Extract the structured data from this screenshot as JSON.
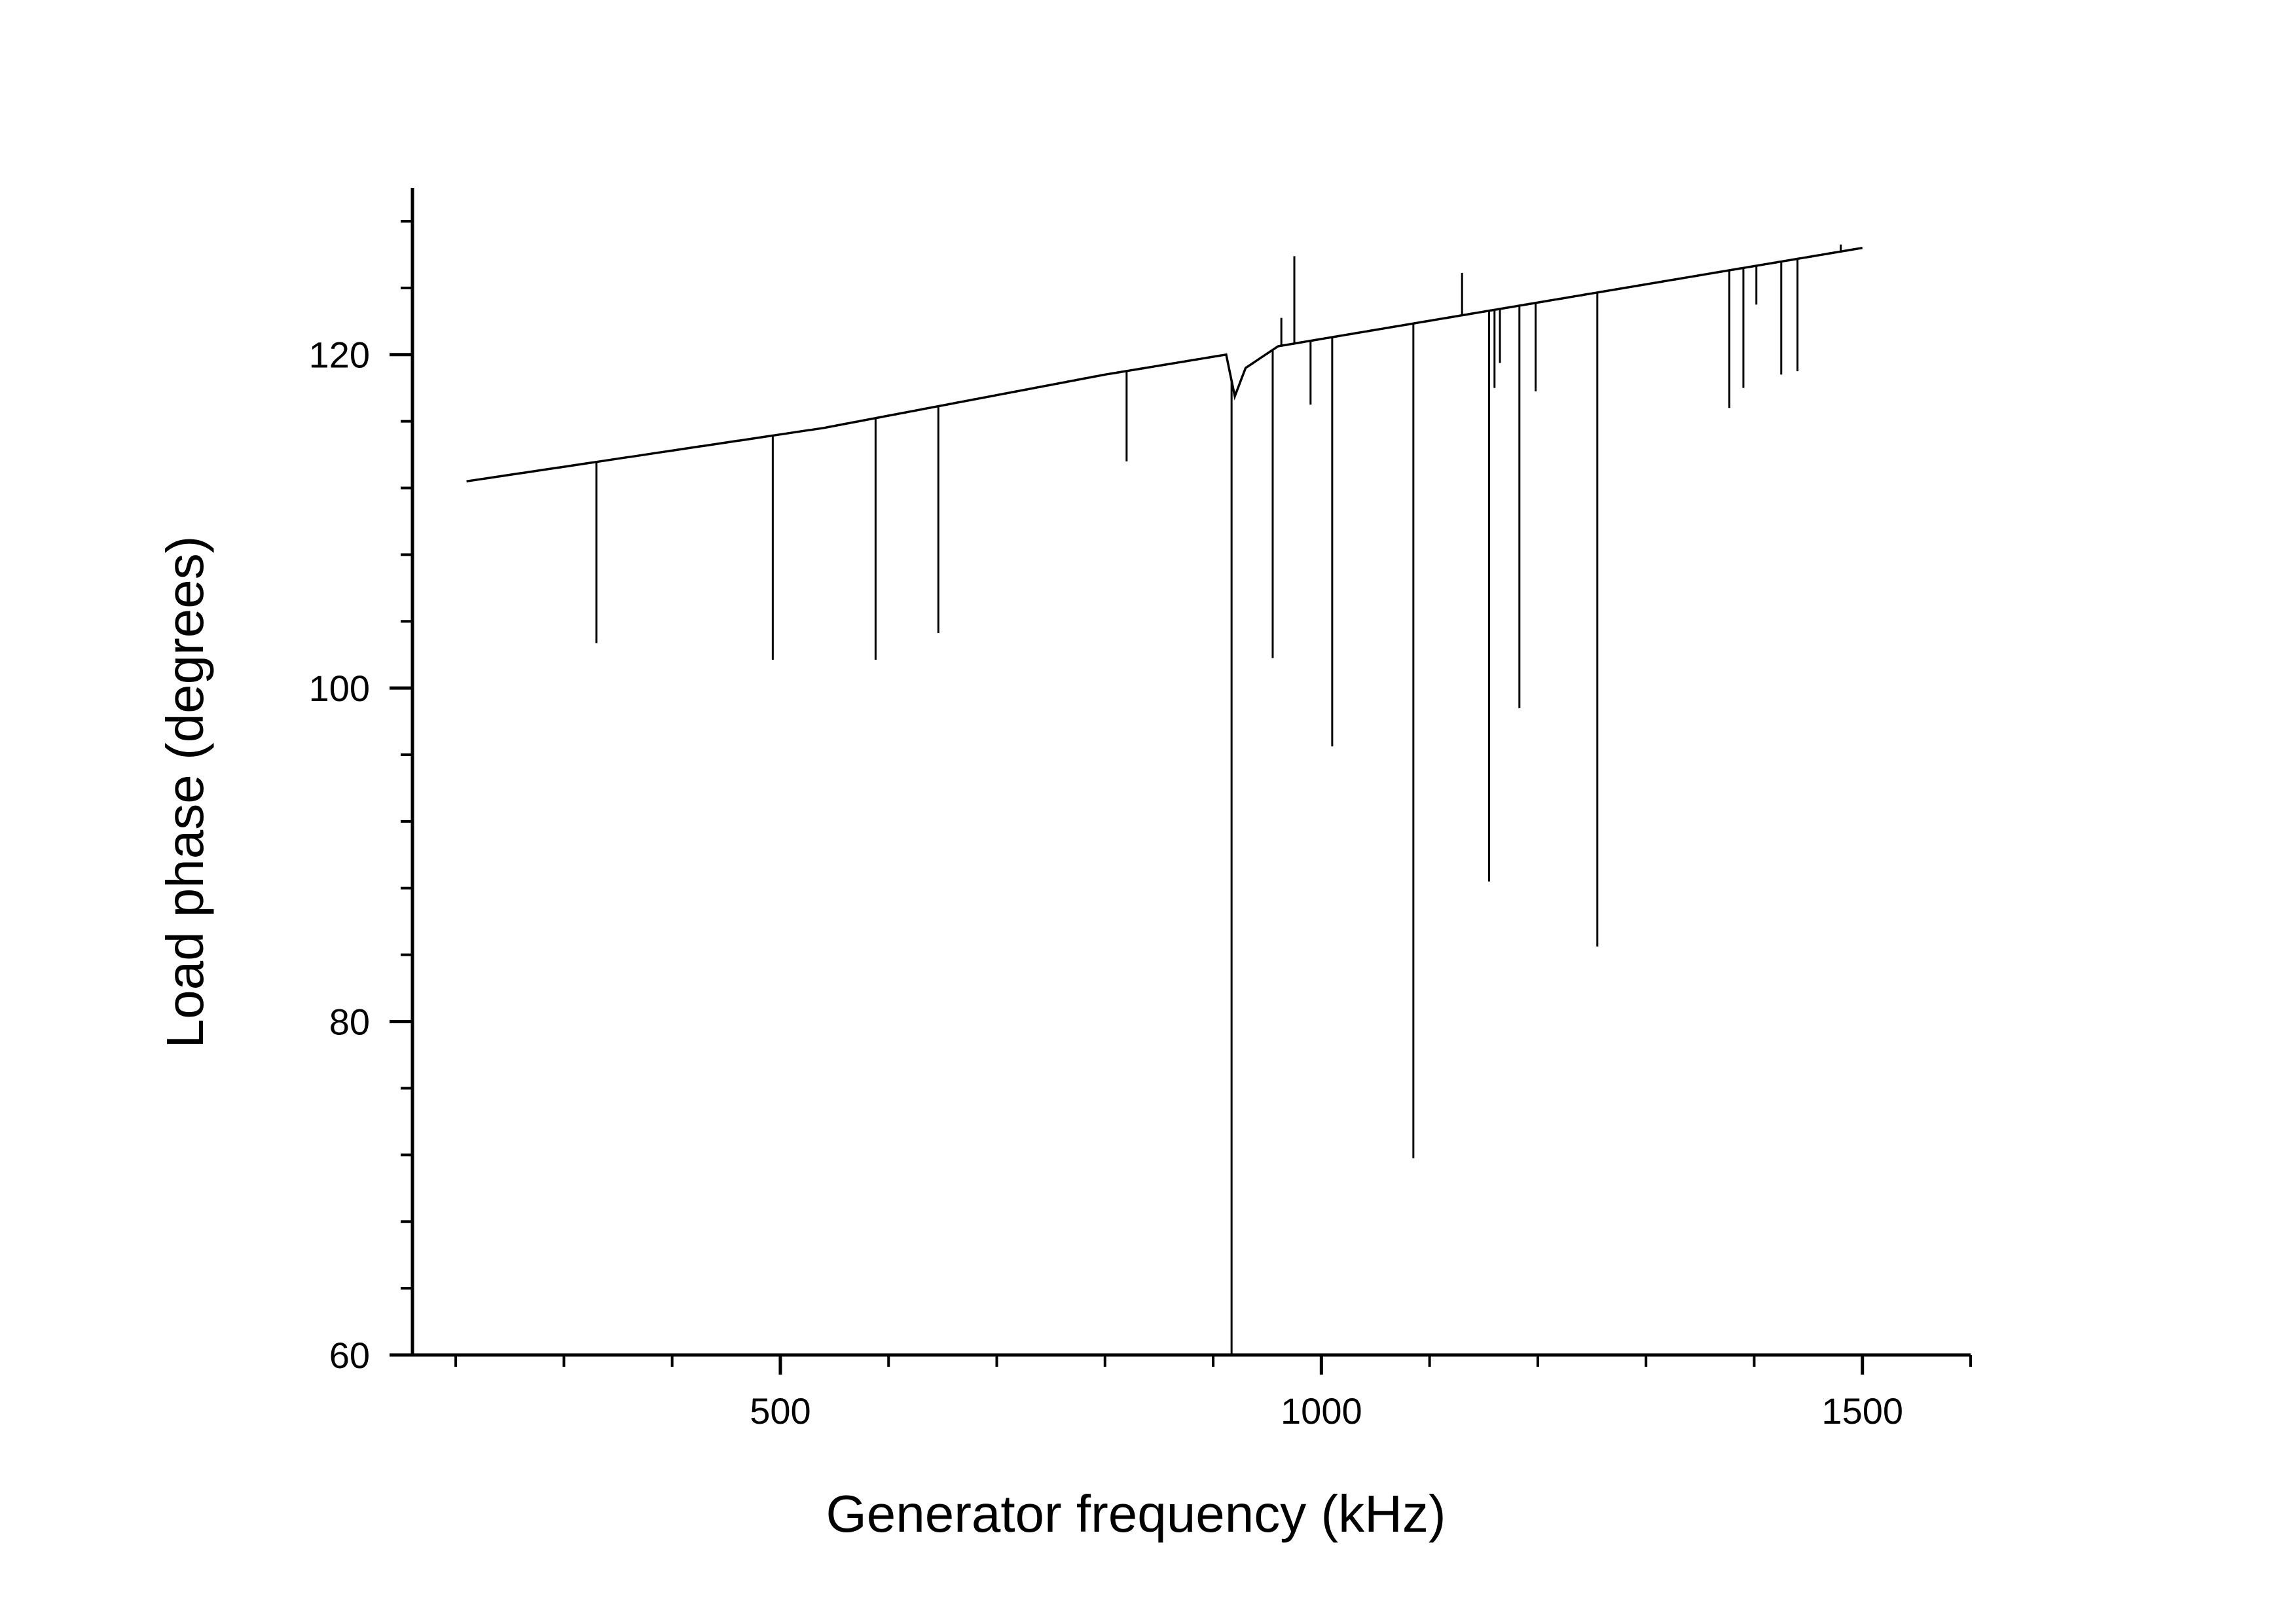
{
  "chart_data": {
    "type": "line",
    "title": "",
    "xlabel": "Generator frequency (kHz)",
    "ylabel": "Load phase (degrees)",
    "xlim": [
      160,
      1600
    ],
    "ylim": [
      60,
      130
    ],
    "x_ticks": [
      500,
      1000,
      1500
    ],
    "x_tick_labels": [
      "500",
      "1000",
      "1500"
    ],
    "x_minor_step": 100,
    "y_ticks": [
      60,
      80,
      100,
      120
    ],
    "y_tick_labels": [
      "60",
      "80",
      "100",
      "120"
    ],
    "y_minor_step": 4,
    "grid": false,
    "legend": "none",
    "line_color": "#000000",
    "baseline": {
      "x": [
        210,
        540,
        800,
        912,
        920,
        930,
        960,
        1500
      ],
      "y": [
        112.4,
        115.6,
        118.8,
        120.0,
        117.5,
        119.2,
        120.5,
        126.4
      ]
    },
    "dips": [
      {
        "x": 330,
        "y": 102.7
      },
      {
        "x": 493,
        "y": 101.7
      },
      {
        "x": 588,
        "y": 101.7
      },
      {
        "x": 646,
        "y": 103.3
      },
      {
        "x": 820,
        "y": 113.6
      },
      {
        "x": 917,
        "y": 60.0
      },
      {
        "x": 955,
        "y": 101.8
      },
      {
        "x": 990,
        "y": 117.0
      },
      {
        "x": 1010,
        "y": 96.5
      },
      {
        "x": 1085,
        "y": 71.8
      },
      {
        "x": 1155,
        "y": 88.4
      },
      {
        "x": 1160,
        "y": 118.0
      },
      {
        "x": 1165,
        "y": 119.5
      },
      {
        "x": 1183,
        "y": 98.8
      },
      {
        "x": 1198,
        "y": 117.8
      },
      {
        "x": 1255,
        "y": 84.5
      },
      {
        "x": 1377,
        "y": 116.8
      },
      {
        "x": 1390,
        "y": 118.0
      },
      {
        "x": 1402,
        "y": 123.0
      },
      {
        "x": 1425,
        "y": 118.8
      },
      {
        "x": 1440,
        "y": 119.0
      }
    ],
    "spikes": [
      {
        "x": 963,
        "y": 122.2
      },
      {
        "x": 975,
        "y": 125.9
      },
      {
        "x": 1130,
        "y": 124.9
      },
      {
        "x": 1480,
        "y": 126.6
      }
    ]
  }
}
